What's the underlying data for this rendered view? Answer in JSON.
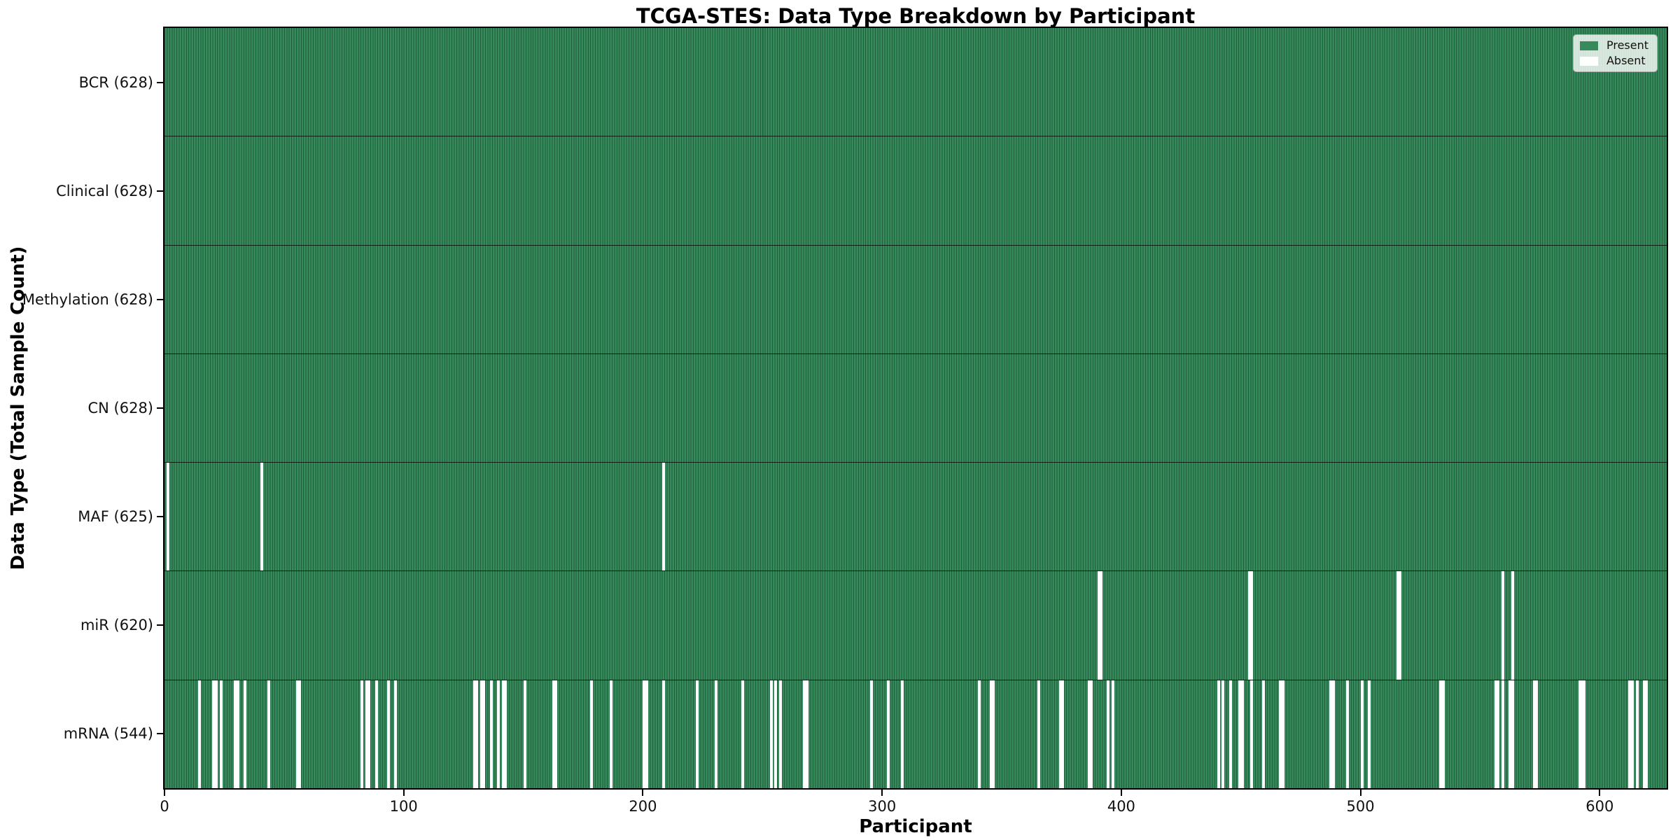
{
  "chart_data": {
    "type": "heatmap",
    "title": "TCGA-STES: Data Type Breakdown by Participant",
    "x_axis": {
      "label": "Participant",
      "ticks": [
        0,
        100,
        200,
        300,
        400,
        500,
        600
      ],
      "range": [
        0,
        628
      ]
    },
    "y_axis": {
      "label": "Data Type (Total Sample Count)"
    },
    "n_participants": 628,
    "legend": [
      {
        "label": "Present",
        "color": "#378a5b"
      },
      {
        "label": "Absent",
        "color": "#ffffff"
      }
    ],
    "colors": {
      "present_fill": "#378a5b",
      "present_edge": "#1f5c3a",
      "absent_fill": "#ffffff",
      "spine": "#000000"
    },
    "rows": [
      {
        "name": "BCR",
        "total": 628,
        "tick_label": "BCR (628)",
        "absent": []
      },
      {
        "name": "Clinical",
        "total": 628,
        "tick_label": "Clinical (628)",
        "absent": []
      },
      {
        "name": "Methylation",
        "total": 628,
        "tick_label": "Methylation (628)",
        "absent": []
      },
      {
        "name": "CN",
        "total": 628,
        "tick_label": "CN (628)",
        "absent": []
      },
      {
        "name": "MAF",
        "total": 625,
        "tick_label": "MAF (625)",
        "absent": [
          1,
          40,
          208
        ]
      },
      {
        "name": "miR",
        "total": 620,
        "tick_label": "miR (620)",
        "absent": [
          390,
          391,
          453,
          454,
          515,
          516,
          559,
          563
        ]
      },
      {
        "name": "mRNA",
        "total": 544,
        "tick_label": "mRNA (544)",
        "absent": [
          14,
          20,
          21,
          23,
          29,
          30,
          33,
          43,
          55,
          56,
          82,
          84,
          85,
          88,
          93,
          96,
          129,
          130,
          132,
          133,
          136,
          139,
          141,
          142,
          150,
          162,
          163,
          178,
          186,
          200,
          201,
          208,
          222,
          230,
          241,
          253,
          255,
          257,
          267,
          268,
          295,
          302,
          308,
          340,
          345,
          346,
          365,
          374,
          375,
          386,
          387,
          394,
          396,
          440,
          442,
          445,
          449,
          450,
          454,
          459,
          466,
          467,
          487,
          488,
          494,
          500,
          503,
          533,
          534,
          556,
          557,
          559,
          562,
          563,
          572,
          573,
          591,
          592,
          593,
          612,
          613,
          615,
          618,
          619
        ]
      }
    ]
  }
}
